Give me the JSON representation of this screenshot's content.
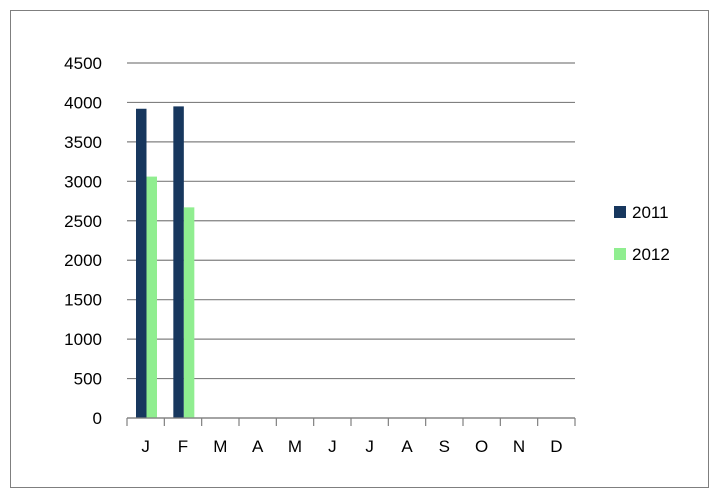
{
  "chart_data": {
    "type": "bar",
    "title": "",
    "xlabel": "",
    "ylabel": "",
    "categories": [
      "J",
      "F",
      "M",
      "A",
      "M",
      "J",
      "J",
      "A",
      "S",
      "O",
      "N",
      "D"
    ],
    "series": [
      {
        "name": "2011",
        "color": "#17375e",
        "values": [
          3920,
          3950,
          null,
          null,
          null,
          null,
          null,
          null,
          null,
          null,
          null,
          null
        ]
      },
      {
        "name": "2012",
        "color": "#90ee90",
        "values": [
          3060,
          2670,
          null,
          null,
          null,
          null,
          null,
          null,
          null,
          null,
          null,
          null
        ]
      }
    ],
    "ylim": [
      0,
      4500
    ],
    "yticks": [
      0,
      500,
      1000,
      1500,
      2000,
      2500,
      3000,
      3500,
      4000,
      4500
    ],
    "grid": true,
    "legend_position": "right"
  }
}
